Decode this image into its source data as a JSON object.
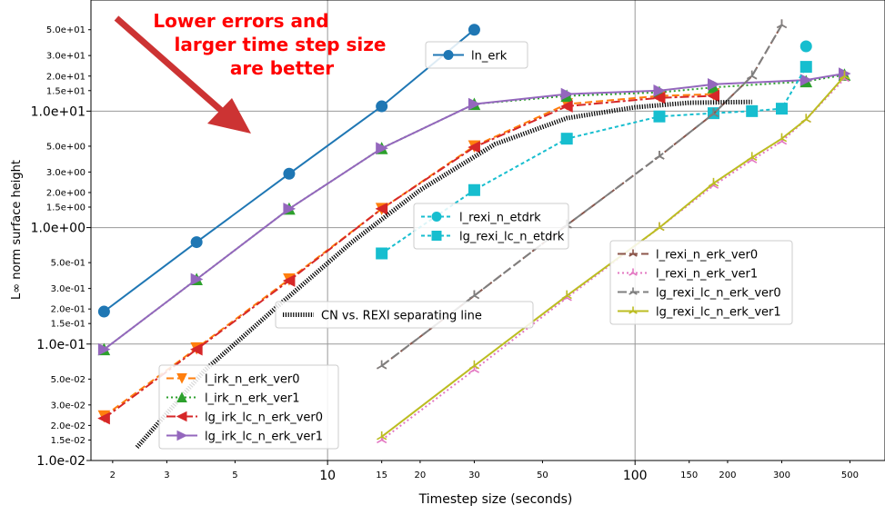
{
  "chart_data": {
    "type": "line",
    "xlabel": "Timestep size (seconds)",
    "ylabel": "L∞ norm surface height",
    "xscale": "log",
    "yscale": "log",
    "xlim": [
      1.7,
      650
    ],
    "ylim": [
      0.01,
      90
    ],
    "grid": "major",
    "xticks_major": [
      {
        "v": 10,
        "label": "10"
      },
      {
        "v": 100,
        "label": "100"
      }
    ],
    "xticks_minor": [
      {
        "v": 2,
        "label": "2"
      },
      {
        "v": 3,
        "label": "3"
      },
      {
        "v": 5,
        "label": "5"
      },
      {
        "v": 15,
        "label": "15"
      },
      {
        "v": 20,
        "label": "20"
      },
      {
        "v": 30,
        "label": "30"
      },
      {
        "v": 50,
        "label": "50"
      },
      {
        "v": 150,
        "label": "150"
      },
      {
        "v": 200,
        "label": "200"
      },
      {
        "v": 300,
        "label": "300"
      },
      {
        "v": 500,
        "label": "500"
      }
    ],
    "yticks_major": [
      {
        "v": 0.01,
        "label": "1.0e-02"
      },
      {
        "v": 0.1,
        "label": "1.0e-01"
      },
      {
        "v": 1,
        "label": "1.0e+00"
      },
      {
        "v": 10,
        "label": "1.0e+01"
      }
    ],
    "yticks_minor": [
      {
        "v": 0.015,
        "label": "1.5e-02"
      },
      {
        "v": 0.02,
        "label": "2.0e-02"
      },
      {
        "v": 0.03,
        "label": "3.0e-02"
      },
      {
        "v": 0.05,
        "label": "5.0e-02"
      },
      {
        "v": 0.15,
        "label": "1.5e-01"
      },
      {
        "v": 0.2,
        "label": "2.0e-01"
      },
      {
        "v": 0.3,
        "label": "3.0e-01"
      },
      {
        "v": 0.5,
        "label": "5.0e-01"
      },
      {
        "v": 1.5,
        "label": "1.5e+00"
      },
      {
        "v": 2,
        "label": "2.0e+00"
      },
      {
        "v": 3,
        "label": "3.0e+00"
      },
      {
        "v": 5,
        "label": "5.0e+00"
      },
      {
        "v": 15,
        "label": "1.5e+01"
      },
      {
        "v": 20,
        "label": "2.0e+01"
      },
      {
        "v": 30,
        "label": "3.0e+01"
      },
      {
        "v": 50,
        "label": "5.0e+01"
      }
    ],
    "annotation": {
      "lines": [
        "Lower errors and",
        "larger time step size",
        "are better"
      ],
      "color": "#ff0000",
      "arrow_color": "#cc3333"
    },
    "series": [
      {
        "name": "ln_erk",
        "color": "#1f77b4",
        "dash": "",
        "marker": "circle",
        "x": [
          1.875,
          3.75,
          7.5,
          15,
          30
        ],
        "y": [
          0.19,
          0.75,
          2.9,
          11,
          50
        ]
      },
      {
        "name": "l_irk_n_erk_ver0",
        "color": "#ff7f0e",
        "dash": "8 4",
        "marker": "tri-down",
        "x": [
          1.875,
          3.75,
          7.5,
          15,
          30,
          60,
          120,
          180
        ],
        "y": [
          0.024,
          0.092,
          0.36,
          1.45,
          5,
          11.5,
          13.5,
          14
        ]
      },
      {
        "name": "l_irk_n_erk_ver1",
        "color": "#2ca02c",
        "dash": "2 3",
        "marker": "tri-up",
        "x": [
          1.875,
          3.75,
          7.5,
          15,
          30,
          60,
          120,
          180,
          360,
          480
        ],
        "y": [
          0.09,
          0.36,
          1.45,
          4.8,
          11.5,
          13.5,
          14.5,
          16,
          18,
          20.5
        ]
      },
      {
        "name": "lg_irk_lc_n_erk_ver0",
        "color": "#d62728",
        "dash": "10 3 3 3",
        "marker": "tri-left",
        "x": [
          1.875,
          3.75,
          7.5,
          15,
          30,
          60,
          120,
          180
        ],
        "y": [
          0.023,
          0.09,
          0.35,
          1.45,
          4.9,
          11,
          13,
          13.5
        ]
      },
      {
        "name": "lg_irk_lc_n_erk_ver1",
        "color": "#9467bd",
        "dash": "",
        "marker": "tri-right",
        "x": [
          1.875,
          3.75,
          7.5,
          15,
          30,
          60,
          120,
          180,
          360,
          480
        ],
        "y": [
          0.09,
          0.36,
          1.45,
          4.8,
          11.5,
          14,
          15,
          17,
          18.5,
          21
        ]
      },
      {
        "name": "l_rexi_n_etdrk",
        "color": "#17becf",
        "dash": "4 3",
        "marker": "circle",
        "x": [
          360
        ],
        "y": [
          36
        ]
      },
      {
        "name": "lg_rexi_lc_n_etdrk",
        "color": "#17becf",
        "dash": "4 3",
        "marker": "square",
        "x": [
          15,
          30,
          60,
          120,
          180,
          240,
          300,
          360
        ],
        "y": [
          0.6,
          2.1,
          5.8,
          9,
          9.6,
          10,
          10.5,
          24
        ]
      },
      {
        "name": "l_rexi_n_erk_ver0",
        "color": "#8c564b",
        "dash": "9 4",
        "marker": "star",
        "x": [
          15,
          30,
          60,
          120,
          180,
          240,
          300
        ],
        "y": [
          0.065,
          0.26,
          1.05,
          4.1,
          9.5,
          20,
          55
        ]
      },
      {
        "name": "l_rexi_n_erk_ver1",
        "color": "#e377c2",
        "dash": "2 3",
        "marker": "star",
        "x": [
          15,
          30,
          60,
          120,
          180,
          240,
          300,
          360,
          480
        ],
        "y": [
          0.015,
          0.06,
          0.25,
          1.0,
          2.3,
          3.8,
          5.5,
          8.5,
          19
        ]
      },
      {
        "name": "lg_rexi_lc_n_erk_ver0",
        "color": "#7f7f7f",
        "dash": "10 4",
        "marker": "star",
        "x": [
          15,
          30,
          60,
          120,
          180,
          240,
          300
        ],
        "y": [
          0.065,
          0.26,
          1.05,
          4.1,
          9.5,
          20,
          55
        ]
      },
      {
        "name": "lg_rexi_lc_n_erk_ver1",
        "color": "#bcbd22",
        "dash": "",
        "marker": "star",
        "x": [
          15,
          30,
          60,
          120,
          180,
          240,
          300,
          360,
          480
        ],
        "y": [
          0.016,
          0.065,
          0.26,
          1.0,
          2.4,
          4.0,
          5.8,
          8.5,
          20
        ]
      },
      {
        "name": "CN vs. REXI separating line",
        "color": "#000000",
        "dash": "thick-dotted",
        "marker": "none",
        "x": [
          2.4,
          4,
          7,
          12,
          20,
          35,
          60,
          100,
          150,
          240
        ],
        "y": [
          0.013,
          0.06,
          0.22,
          0.75,
          2.1,
          5.2,
          8.7,
          10.8,
          11.8,
          12
        ]
      }
    ],
    "legends": [
      {
        "position": "upper-center",
        "items": [
          "ln_erk"
        ]
      },
      {
        "position": "center",
        "items": [
          "l_rexi_n_etdrk",
          "lg_rexi_lc_n_etdrk"
        ]
      },
      {
        "position": "center-right",
        "items": [
          "l_rexi_n_erk_ver0",
          "l_rexi_n_erk_ver1",
          "lg_rexi_lc_n_erk_ver0",
          "lg_rexi_lc_n_erk_ver1"
        ]
      },
      {
        "position": "center-left",
        "items": [
          "CN vs. REXI separating line"
        ]
      },
      {
        "position": "lower-left",
        "items": [
          "l_irk_n_erk_ver0",
          "l_irk_n_erk_ver1",
          "lg_irk_lc_n_erk_ver0",
          "lg_irk_lc_n_erk_ver1"
        ]
      }
    ]
  }
}
